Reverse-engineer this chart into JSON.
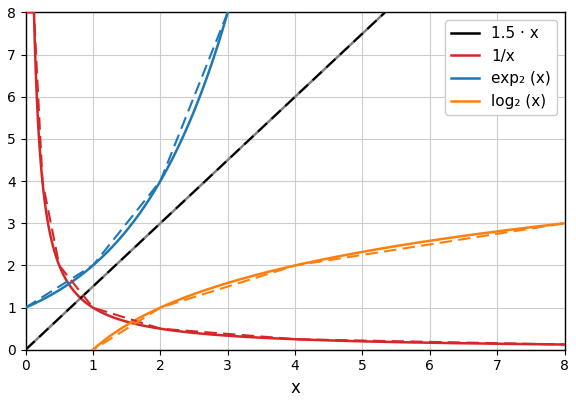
{
  "xlim": [
    0,
    8
  ],
  "ylim": [
    0,
    8
  ],
  "xlabel": "x",
  "functions": {
    "linear": {
      "color_solid": "#808080",
      "color_dashed": "#000000"
    },
    "inv": {
      "color_solid": "#d62728",
      "color_dashed": "#d62728"
    },
    "exp2": {
      "color_solid": "#1f77b4",
      "color_dashed": "#1f77b4"
    },
    "log2": {
      "color_solid": "#ff7f0e",
      "color_dashed": "#ff7f0e"
    }
  },
  "bk_lin": [
    0,
    1,
    2,
    3,
    4,
    5,
    6,
    7,
    8
  ],
  "bk_inv": [
    0.125,
    0.25,
    0.5,
    1.0,
    2.0,
    4.0,
    8.0
  ],
  "bk_exp": [
    0,
    1,
    2,
    3
  ],
  "bk_log": [
    1.0,
    2.0,
    4.0,
    8.0
  ],
  "linewidth_solid": 1.8,
  "linewidth_dashed": 1.5,
  "dash_pattern": [
    6,
    3
  ],
  "legend_labels": [
    "1.5 · x",
    "1/x",
    "exp₂ (x)",
    "log₂ (x)"
  ]
}
